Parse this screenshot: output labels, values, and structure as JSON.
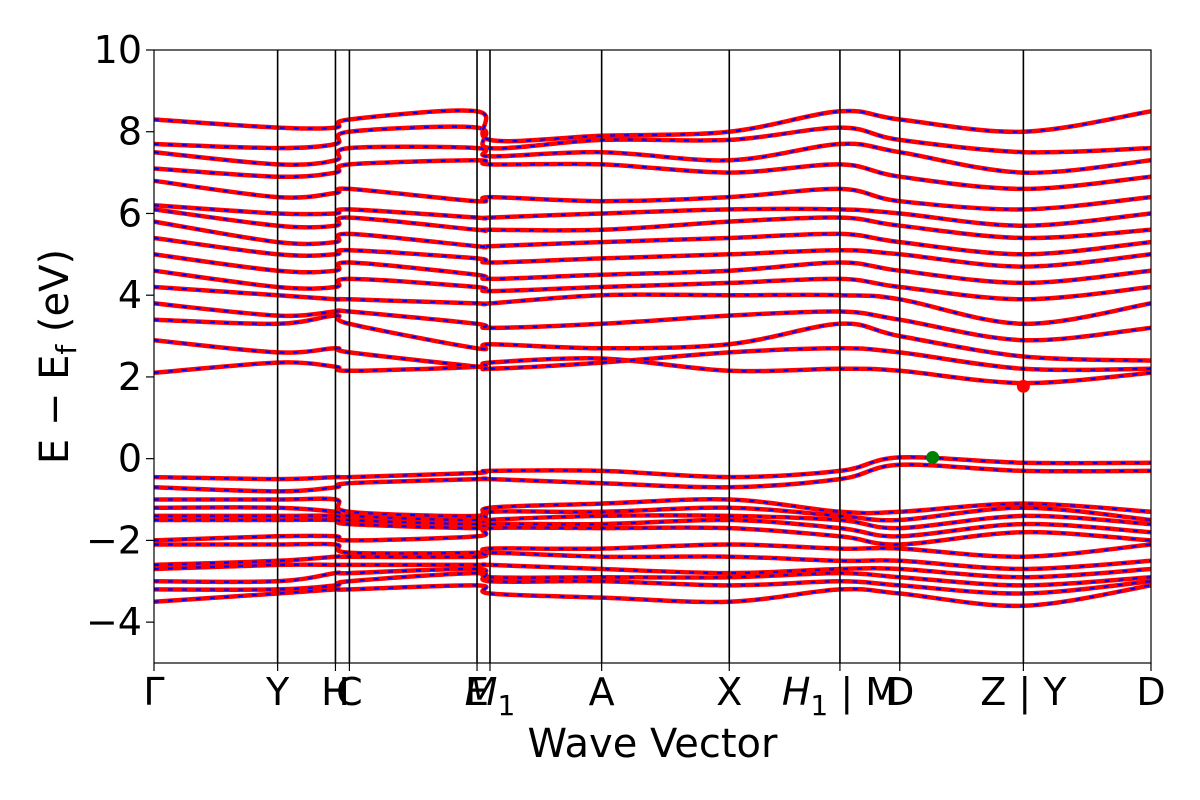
{
  "chart_data": {
    "type": "line",
    "title": "",
    "xlabel": "Wave Vector",
    "ylabel_main": "E − E",
    "ylabel_sub": "f",
    "ylabel_unit": " (eV)",
    "ylim": [
      -5,
      10
    ],
    "grid": false,
    "y_ticks": [
      {
        "value": -4,
        "label": "−4"
      },
      {
        "value": -2,
        "label": "−2"
      },
      {
        "value": 0,
        "label": "0"
      },
      {
        "value": 2,
        "label": "2"
      },
      {
        "value": 4,
        "label": "4"
      },
      {
        "value": 6,
        "label": "6"
      },
      {
        "value": 8,
        "label": "8"
      },
      {
        "value": 10,
        "label": "10"
      }
    ],
    "high_symmetry_points": [
      {
        "position": 0.0,
        "label": "Γ"
      },
      {
        "position": 0.124,
        "label": "Y"
      },
      {
        "position": 0.182,
        "label": "H"
      },
      {
        "position": 0.196,
        "label": "C"
      },
      {
        "position": 0.324,
        "label": "E"
      },
      {
        "position": 0.337,
        "label": "M",
        "sub": "1"
      },
      {
        "position": 0.449,
        "label": "A"
      },
      {
        "position": 0.577,
        "label": "X"
      },
      {
        "position": 0.688,
        "label": "H",
        "sub": "1",
        "suffix": " | M"
      },
      {
        "position": 0.748,
        "label": "D"
      },
      {
        "position": 0.872,
        "label": "Z | Y"
      },
      {
        "position": 1.0,
        "label": "D"
      }
    ],
    "series": [
      {
        "color": "#ff0000",
        "style": "solid"
      },
      {
        "color": "#0000ff",
        "style": "dashed"
      }
    ],
    "markers": [
      {
        "label": "VBM",
        "x": 0.781,
        "y": 0.03,
        "color": "#008000"
      },
      {
        "label": "CBM",
        "x": 0.872,
        "y": 1.77,
        "color": "#ff0000"
      }
    ],
    "conduction_band_anchors": [
      [
        2.1,
        2.35,
        2.25,
        2.15,
        2.25,
        2.35,
        2.45,
        2.15,
        2.2,
        2.15,
        1.85,
        2.1
      ],
      [
        2.9,
        2.6,
        2.7,
        2.6,
        2.25,
        2.2,
        2.35,
        2.6,
        2.7,
        2.6,
        2.2,
        2.2
      ],
      [
        3.4,
        3.3,
        3.5,
        3.3,
        2.7,
        2.8,
        2.7,
        2.8,
        3.3,
        3.0,
        2.5,
        2.4
      ],
      [
        3.8,
        3.5,
        3.6,
        3.6,
        3.3,
        3.2,
        3.3,
        3.5,
        3.6,
        3.4,
        2.9,
        3.2
      ],
      [
        4.2,
        4.0,
        3.9,
        3.9,
        3.8,
        3.8,
        4.0,
        4.0,
        4.0,
        3.9,
        3.3,
        3.8
      ],
      [
        4.6,
        4.2,
        4.2,
        4.4,
        4.2,
        4.1,
        4.2,
        4.3,
        4.4,
        4.2,
        3.9,
        4.2
      ],
      [
        5.0,
        4.6,
        4.6,
        4.8,
        4.5,
        4.4,
        4.5,
        4.6,
        4.8,
        4.6,
        4.3,
        4.6
      ],
      [
        5.4,
        5.0,
        5.0,
        5.1,
        4.9,
        4.8,
        4.9,
        5.0,
        5.1,
        5.0,
        4.7,
        5.0
      ],
      [
        5.8,
        5.3,
        5.3,
        5.5,
        5.2,
        5.2,
        5.3,
        5.4,
        5.5,
        5.3,
        5.0,
        5.3
      ],
      [
        6.1,
        5.7,
        5.7,
        5.9,
        5.6,
        5.6,
        5.6,
        5.8,
        5.9,
        5.7,
        5.4,
        5.6
      ],
      [
        6.2,
        6.0,
        6.0,
        6.1,
        5.9,
        5.9,
        6.0,
        6.1,
        6.1,
        6.0,
        5.7,
        6.0
      ],
      [
        6.8,
        6.4,
        6.5,
        6.6,
        6.3,
        6.4,
        6.3,
        6.4,
        6.6,
        6.3,
        6.1,
        6.4
      ],
      [
        7.1,
        6.9,
        7.0,
        7.2,
        7.3,
        7.2,
        7.2,
        7.0,
        7.2,
        6.9,
        6.6,
        6.9
      ],
      [
        7.5,
        7.2,
        7.3,
        7.6,
        7.6,
        7.4,
        7.5,
        7.3,
        7.7,
        7.5,
        7.0,
        7.3
      ],
      [
        7.7,
        7.6,
        7.7,
        8.0,
        8.1,
        7.6,
        7.8,
        7.8,
        8.1,
        7.8,
        7.5,
        7.6
      ],
      [
        8.3,
        8.1,
        8.1,
        8.3,
        8.5,
        7.8,
        7.9,
        8.0,
        8.5,
        8.3,
        8.0,
        8.5
      ]
    ],
    "valence_band_anchors": [
      [
        -0.45,
        -0.5,
        -0.45,
        -0.45,
        -0.35,
        -0.3,
        -0.3,
        -0.45,
        -0.3,
        0.03,
        -0.1,
        -0.1
      ],
      [
        -0.7,
        -0.8,
        -0.7,
        -0.6,
        -0.5,
        -0.5,
        -0.6,
        -0.7,
        -0.5,
        -0.15,
        -0.3,
        -0.3
      ],
      [
        -1.0,
        -1.0,
        -1.0,
        -1.3,
        -1.4,
        -1.2,
        -1.1,
        -1.0,
        -1.3,
        -1.3,
        -1.1,
        -1.3
      ],
      [
        -1.2,
        -1.2,
        -1.3,
        -1.4,
        -1.5,
        -1.3,
        -1.3,
        -1.2,
        -1.4,
        -1.5,
        -1.2,
        -1.5
      ],
      [
        -1.4,
        -1.4,
        -1.4,
        -1.5,
        -1.6,
        -1.5,
        -1.4,
        -1.4,
        -1.5,
        -1.7,
        -1.4,
        -1.6
      ],
      [
        -1.5,
        -1.5,
        -1.5,
        -1.6,
        -1.7,
        -1.6,
        -1.6,
        -1.5,
        -1.7,
        -1.9,
        -1.6,
        -1.8
      ],
      [
        -2.0,
        -1.9,
        -1.9,
        -2.0,
        -1.9,
        -1.7,
        -1.7,
        -1.7,
        -1.9,
        -2.1,
        -1.8,
        -2.0
      ],
      [
        -2.1,
        -2.1,
        -2.1,
        -2.3,
        -2.3,
        -2.2,
        -2.2,
        -2.1,
        -2.2,
        -2.2,
        -2.4,
        -2.1
      ],
      [
        -2.6,
        -2.5,
        -2.4,
        -2.4,
        -2.4,
        -2.3,
        -2.4,
        -2.4,
        -2.5,
        -2.5,
        -2.7,
        -2.5
      ],
      [
        -2.7,
        -2.6,
        -2.6,
        -2.6,
        -2.6,
        -2.6,
        -2.7,
        -2.8,
        -2.7,
        -2.7,
        -2.9,
        -2.7
      ],
      [
        -3.0,
        -3.0,
        -2.8,
        -2.8,
        -2.7,
        -2.9,
        -2.9,
        -2.9,
        -2.8,
        -2.9,
        -3.1,
        -2.9
      ],
      [
        -3.2,
        -3.2,
        -3.1,
        -3.0,
        -2.8,
        -3.0,
        -3.0,
        -3.1,
        -3.0,
        -3.1,
        -3.3,
        -3.0
      ],
      [
        -3.5,
        -3.3,
        -3.2,
        -3.2,
        -3.1,
        -3.3,
        -3.4,
        -3.5,
        -3.2,
        -3.3,
        -3.6,
        -3.1
      ]
    ]
  }
}
